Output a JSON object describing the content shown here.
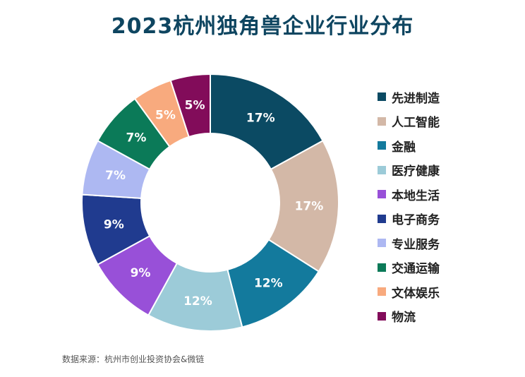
{
  "title": "2023杭州独角兽企业行业分布",
  "source": "数据来源：杭州市创业投资协会&微链",
  "chart_data": {
    "type": "pie",
    "variant": "donut",
    "categories": [
      "先进制造",
      "人工智能",
      "金融",
      "医疗健康",
      "本地生活",
      "电子商务",
      "专业服务",
      "交通运输",
      "文体娱乐",
      "物流"
    ],
    "values": [
      17,
      17,
      12,
      12,
      9,
      9,
      7,
      7,
      5,
      5
    ],
    "labels": [
      "17%",
      "17%",
      "12%",
      "12%",
      "9%",
      "9%",
      "7%",
      "7%",
      "5%",
      "5%"
    ],
    "colors": [
      "#0b4a63",
      "#d3b8a7",
      "#137a9d",
      "#9ccbd8",
      "#9850d8",
      "#203b8f",
      "#adb8f2",
      "#0b7a58",
      "#f8aa7e",
      "#820c5a"
    ],
    "label_colors": [
      "#ffffff",
      "#ffffff",
      "#ffffff",
      "#ffffff",
      "#ffffff",
      "#ffffff",
      "#ffffff",
      "#ffffff",
      "#ffffff",
      "#ffffff"
    ],
    "legend_position": "right"
  }
}
